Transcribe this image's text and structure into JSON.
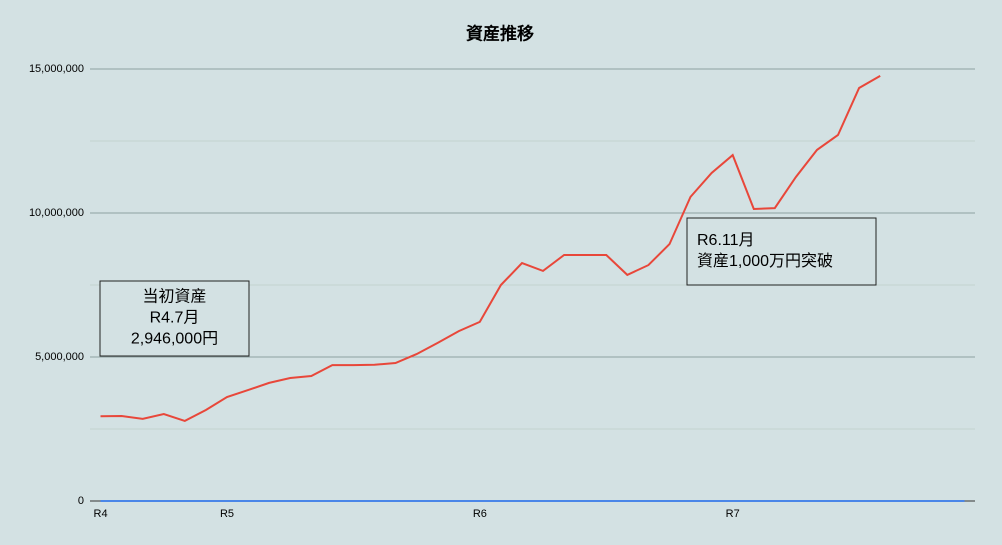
{
  "chart_data": {
    "type": "line",
    "title": "資産推移",
    "categories": [
      "R4",
      null,
      null,
      null,
      null,
      null,
      "R5",
      null,
      null,
      null,
      null,
      null,
      null,
      null,
      null,
      null,
      null,
      null,
      "R6",
      null,
      null,
      null,
      null,
      null,
      null,
      null,
      null,
      null,
      null,
      null,
      "R7",
      null,
      null,
      null,
      null,
      null,
      null,
      null,
      null,
      null,
      null,
      null
    ],
    "series": [
      {
        "color": "#e8473a",
        "values": [
          2946000,
          2950000,
          2850000,
          3020000,
          2780000,
          3160000,
          3610000,
          3850000,
          4100000,
          4270000,
          4340000,
          4720000,
          4720000,
          4730000,
          4790000,
          5100000,
          5490000,
          5900000,
          6220000,
          7500000,
          8260000,
          7990000,
          8540000,
          8540000,
          8540000,
          7850000,
          8190000,
          8920000,
          10560000,
          11390000,
          12010000,
          10140000,
          10170000,
          11250000,
          12190000,
          12710000,
          14340000,
          14760000,
          null,
          null,
          null,
          null
        ]
      },
      {
        "color": "#4a86e8",
        "values": [
          0,
          0,
          0,
          0,
          0,
          0,
          0,
          0,
          0,
          0,
          0,
          0,
          0,
          0,
          0,
          0,
          0,
          0,
          0,
          0,
          0,
          0,
          0,
          0,
          0,
          0,
          0,
          0,
          0,
          0,
          0,
          0,
          0,
          0,
          0,
          0,
          0,
          0,
          0,
          0,
          0,
          0
        ]
      }
    ],
    "ylim": [
      0,
      15000000
    ],
    "yticks": [
      0,
      {
        "value": 5000000,
        "label": "5,000,000"
      },
      {
        "value": 10000000,
        "label": "10,000,000"
      },
      {
        "value": 15000000,
        "label": "15,000,000"
      }
    ],
    "minor_yticks": [
      2500000,
      7500000,
      12500000
    ],
    "grid": true,
    "annotations": [
      {
        "lines": [
          "当初資産",
          "R4.7月",
          "2,946,000円"
        ]
      },
      {
        "lines": [
          "R6.11月",
          "資産1,000万円突破"
        ]
      }
    ]
  }
}
